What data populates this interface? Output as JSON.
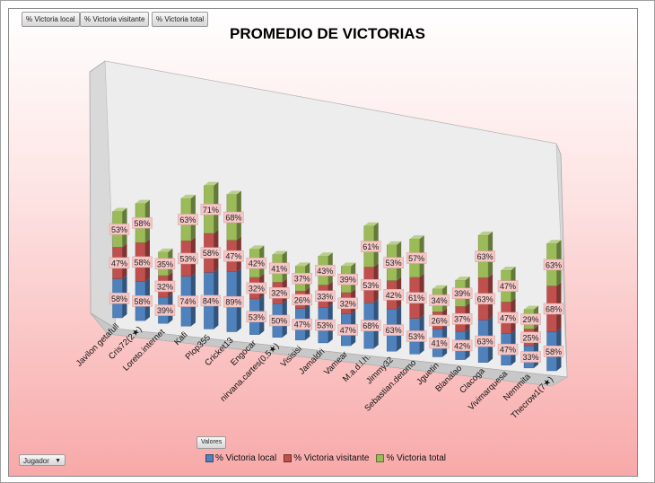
{
  "buttons": {
    "local": "% Victoria local",
    "visitante": "% Victoria visitante",
    "total": "% Victoria total",
    "valores": "Valores",
    "jugador": "Jugador",
    "jugador_arrow": "▼"
  },
  "colors": {
    "local": "#4f81bd",
    "visitante": "#c0504d",
    "total": "#9bbb59"
  },
  "chart_data": {
    "type": "bar",
    "stacked": true,
    "three_d": true,
    "title": "PROMEDIO DE VICTORIAS",
    "categories": [
      "Javilon getafull",
      "Cris72(2★)",
      "Loreto.internet",
      "Kafi",
      "Plop355",
      "Cricket13",
      "Engocar",
      "nirvana.cartes(0,5★)",
      "Visisisi",
      "Jamaldri",
      "Vamear",
      "M.a.d.l.h.",
      "Jimmy32",
      "Sebastian.detomo",
      "Jguetin",
      "Blanalao",
      "Clacoga",
      "Vivimarquesa",
      "Nemmita",
      "Thecrow1(7★)"
    ],
    "series": [
      {
        "name": "% Victoria local",
        "values": [
          58,
          58,
          39,
          74,
          84,
          89,
          53,
          50,
          47,
          53,
          47,
          68,
          63,
          53,
          41,
          42,
          63,
          47,
          33,
          58
        ],
        "labels": [
          "58%",
          "58%",
          "39%",
          "74%",
          "84%",
          "89%",
          "53%",
          "50%",
          "47%",
          "53%",
          "47%",
          "68%",
          "63%",
          "53%",
          "41%",
          "42%",
          "63%",
          "47%",
          "33%",
          "58%"
        ]
      },
      {
        "name": "% Victoria visitante",
        "values": [
          47,
          58,
          32,
          53,
          58,
          47,
          32,
          32,
          26,
          33,
          32,
          53,
          42,
          61,
          26,
          37,
          63,
          47,
          25,
          68
        ],
        "labels": [
          "47%",
          "58%",
          "32%",
          "53%",
          "58%",
          "47%",
          "32%",
          "32%",
          "26%",
          "33%",
          "32%",
          "53%",
          "42%",
          "61%",
          "26%",
          "37%",
          "63%",
          "47%",
          "25%",
          "68%"
        ]
      },
      {
        "name": "% Victoria total",
        "values": [
          53,
          58,
          35,
          63,
          71,
          68,
          42,
          41,
          37,
          43,
          39,
          61,
          53,
          57,
          34,
          39,
          63,
          47,
          29,
          63
        ],
        "labels": [
          "53%",
          "58%",
          "35%",
          "63%",
          "71%",
          "68%",
          "42%",
          "41%",
          "37%",
          "43%",
          "39%",
          "61%",
          "53%",
          "57%",
          "34%",
          "39%",
          "63%",
          "47%",
          "29%",
          "63%"
        ]
      }
    ],
    "legend_position": "bottom",
    "grid": false
  }
}
